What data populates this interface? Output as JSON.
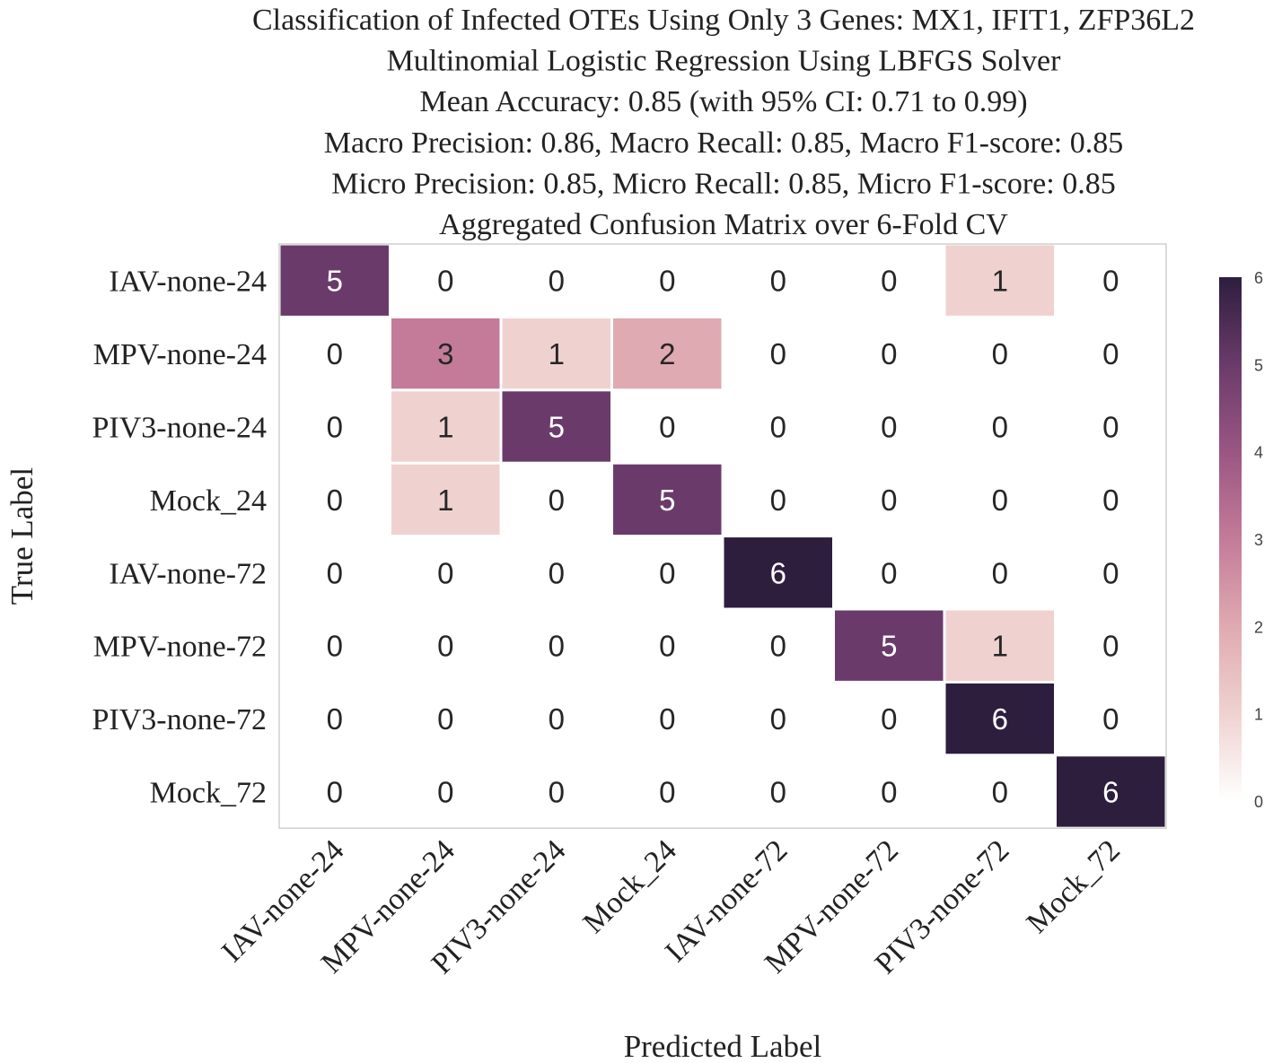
{
  "chart_data": {
    "type": "heatmap",
    "title_lines": [
      "Classification of Infected OTEs Using Only 3 Genes: MX1, IFIT1, ZFP36L2",
      "Multinomial Logistic Regression Using LBFGS Solver",
      "Mean Accuracy: 0.85 (with 95% CI: 0.71 to 0.99)",
      "Macro Precision: 0.86, Macro Recall: 0.85, Macro F1-score: 0.85",
      "Micro Precision: 0.85, Micro Recall: 0.85, Micro F1-score: 0.85",
      "Aggregated Confusion Matrix over 6-Fold CV"
    ],
    "xlabel": "Predicted Label",
    "ylabel": "True Label",
    "row_labels": [
      "IAV-none-24",
      "MPV-none-24",
      "PIV3-none-24",
      "Mock_24",
      "IAV-none-72",
      "MPV-none-72",
      "PIV3-none-72",
      "Mock_72"
    ],
    "col_labels": [
      "IAV-none-24",
      "MPV-none-24",
      "PIV3-none-24",
      "Mock_24",
      "IAV-none-72",
      "MPV-none-72",
      "PIV3-none-72",
      "Mock_72"
    ],
    "matrix": [
      [
        5,
        0,
        0,
        0,
        0,
        0,
        1,
        0
      ],
      [
        0,
        3,
        1,
        2,
        0,
        0,
        0,
        0
      ],
      [
        0,
        1,
        5,
        0,
        0,
        0,
        0,
        0
      ],
      [
        0,
        1,
        0,
        5,
        0,
        0,
        0,
        0
      ],
      [
        0,
        0,
        0,
        0,
        6,
        0,
        0,
        0
      ],
      [
        0,
        0,
        0,
        0,
        0,
        5,
        1,
        0
      ],
      [
        0,
        0,
        0,
        0,
        0,
        0,
        6,
        0
      ],
      [
        0,
        0,
        0,
        0,
        0,
        0,
        0,
        6
      ]
    ],
    "vmin": 0,
    "vmax": 6,
    "colorbar_ticks": [
      "0",
      "1",
      "2",
      "3",
      "4",
      "5",
      "6"
    ],
    "color_stops": [
      "#ffffff",
      "#efd2d0",
      "#dfaab1",
      "#c47b99",
      "#9a5683",
      "#6a3b6a",
      "#2d1e3e"
    ]
  }
}
